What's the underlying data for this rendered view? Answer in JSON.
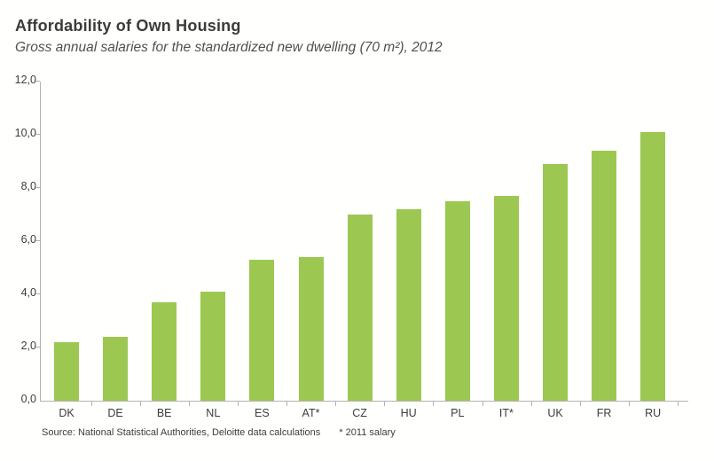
{
  "header": {
    "title": "Affordability of Own Housing",
    "subtitle": "Gross annual salaries for the standardized new dwelling (70 m²), 2012"
  },
  "footnote": {
    "source": "Source: National  Statistical Authorities, Deloitte data calculations",
    "note": "* 2011 salary"
  },
  "chart_data": {
    "type": "bar",
    "title": "Affordability of Own Housing",
    "subtitle": "Gross annual salaries for the standardized new dwelling (70 m²), 2012",
    "categories": [
      "DK",
      "DE",
      "BE",
      "NL",
      "ES",
      "AT*",
      "CZ",
      "HU",
      "PL",
      "IT*",
      "UK",
      "FR",
      "RU"
    ],
    "values": [
      2.2,
      2.4,
      3.7,
      4.1,
      5.3,
      5.4,
      7.0,
      7.2,
      7.5,
      7.7,
      8.9,
      9.4,
      10.1
    ],
    "xlabel": "",
    "ylabel": "",
    "ylim": [
      0,
      12
    ],
    "ytick_step": 2,
    "ytick_labels": [
      "0,0",
      "2,0",
      "4,0",
      "6,0",
      "8,0",
      "10,0",
      "12,0"
    ],
    "decimal_style": "comma",
    "grid": false,
    "legend": "none",
    "bar_color": "#9cc751",
    "axis_color": "#b3b3b2",
    "text_color": "#3c3c3b"
  }
}
